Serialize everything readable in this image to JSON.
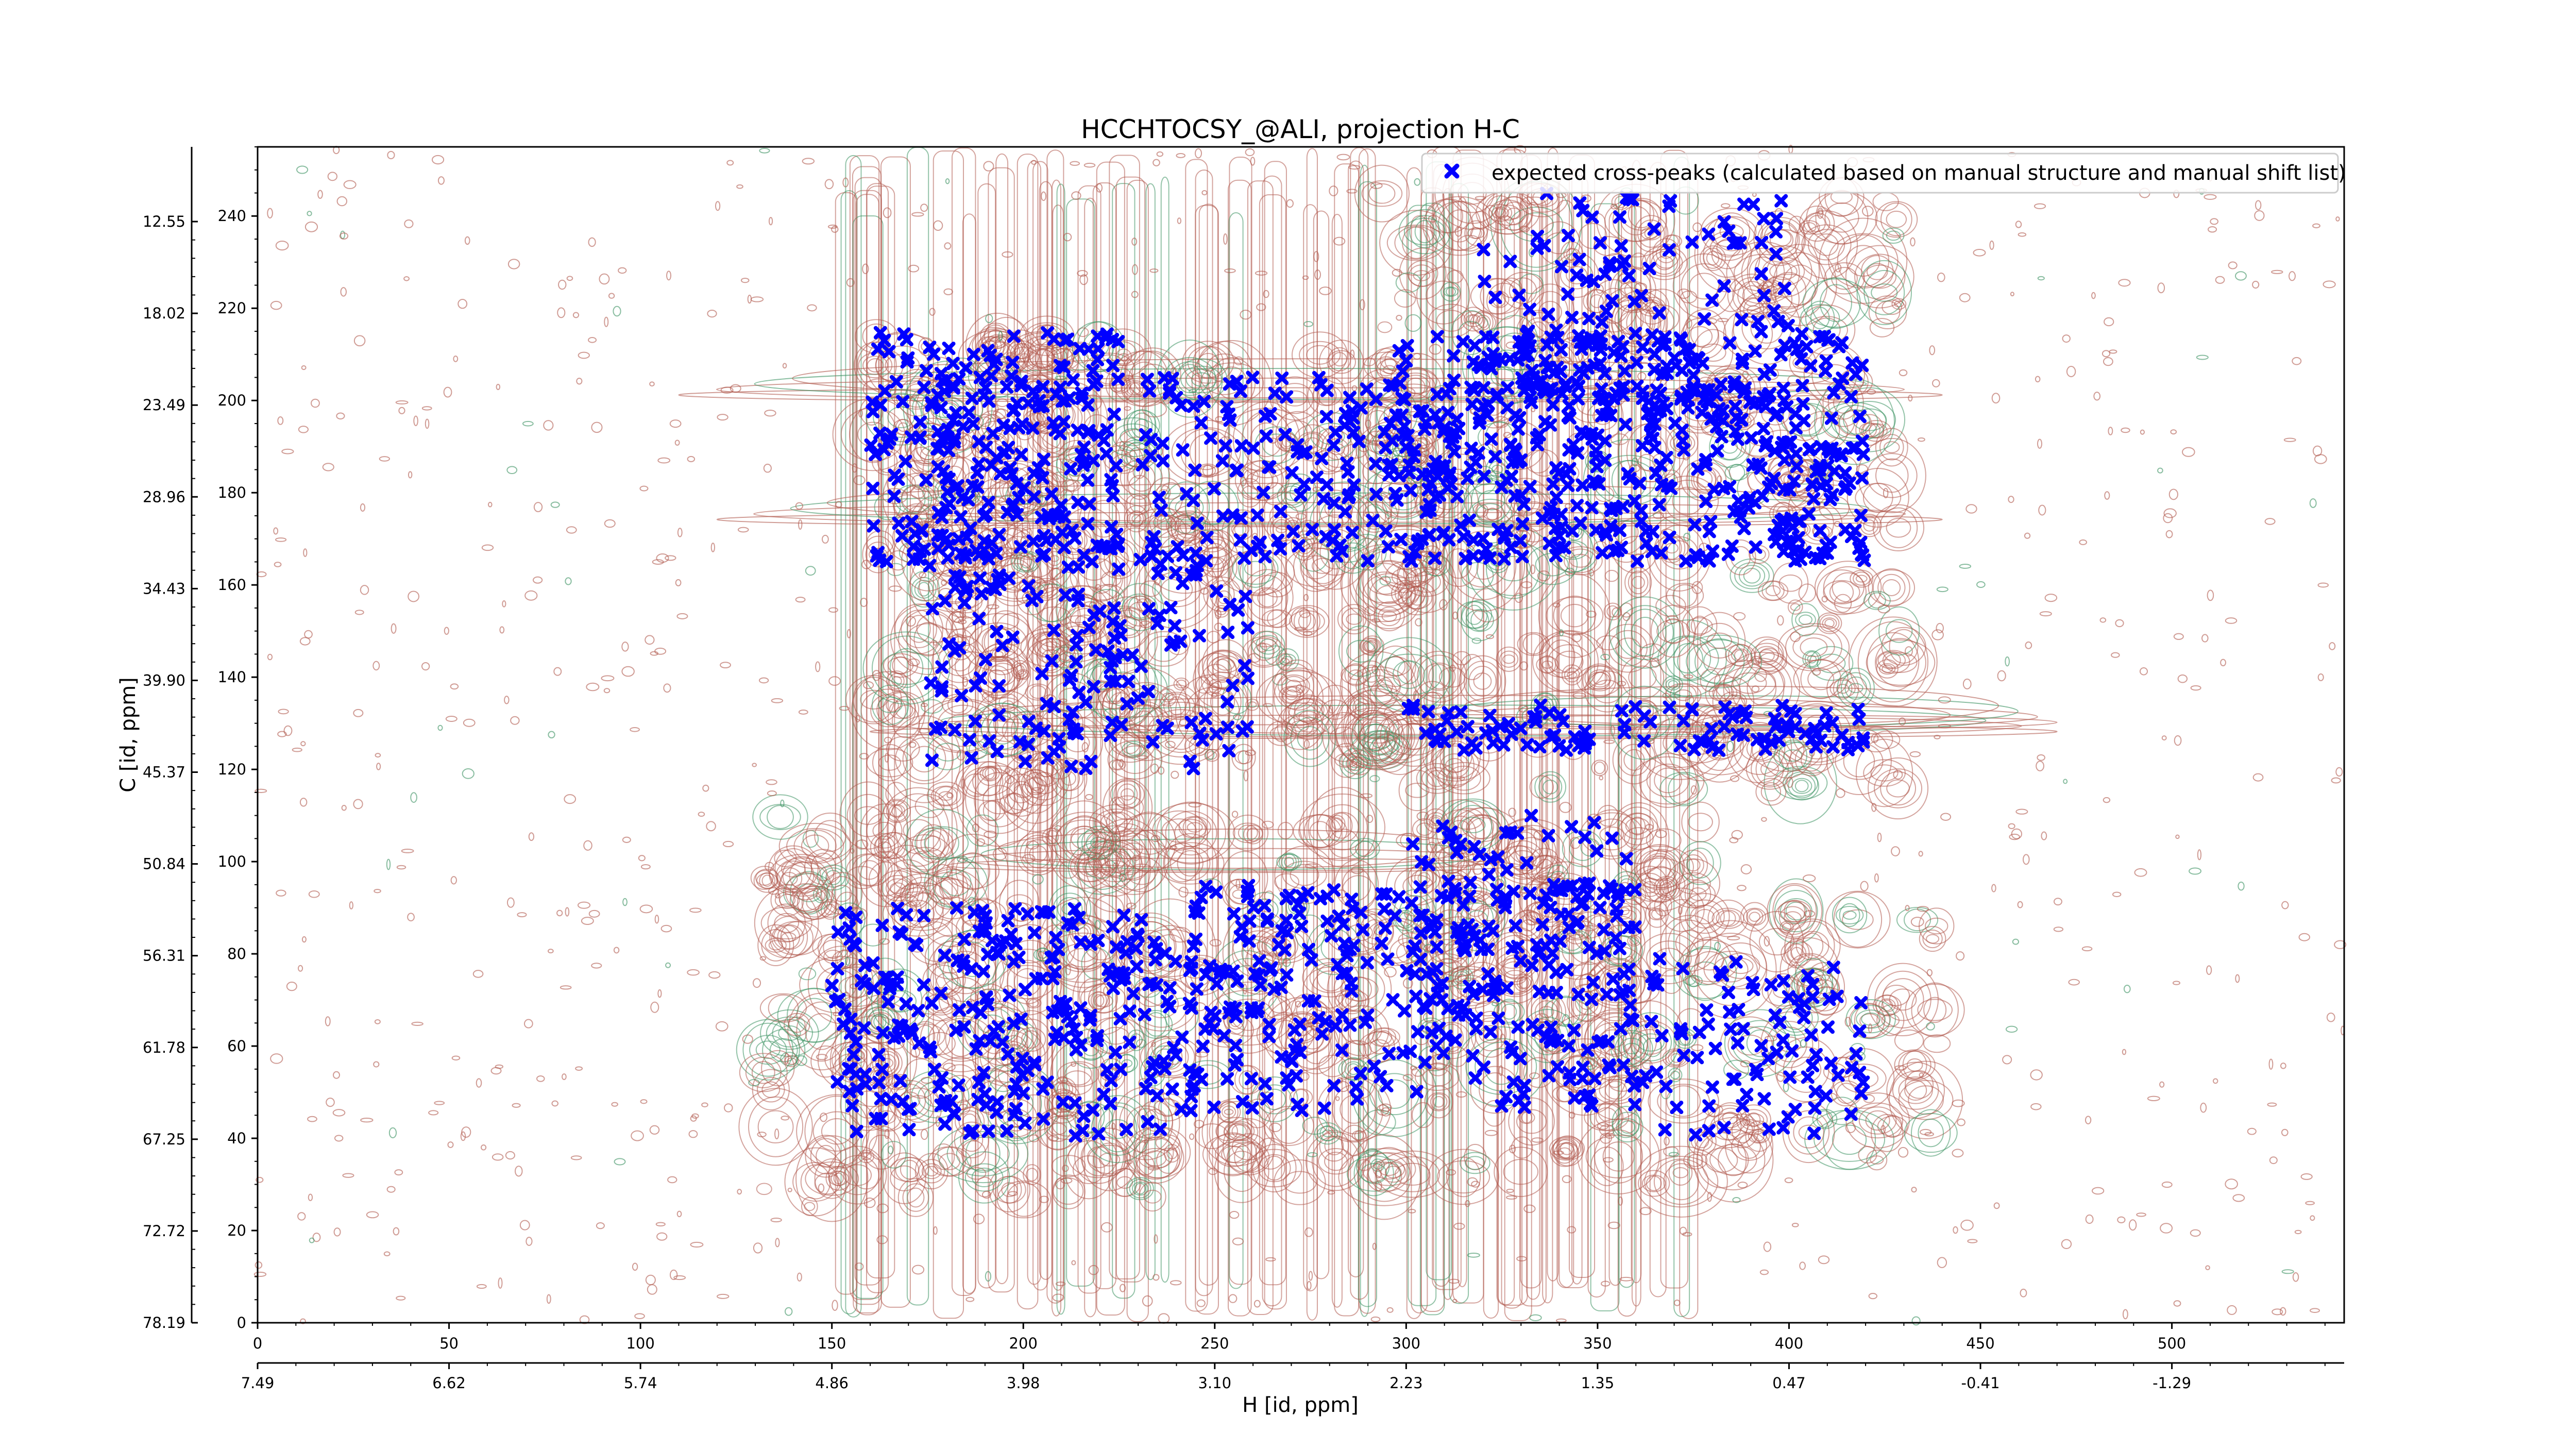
{
  "chart_data": {
    "type": "scatter",
    "title": "HCCHTOCSY_@ALI, projection H-C",
    "xlabel": "H [id, ppm]",
    "ylabel": "C [id, ppm]",
    "grid": false,
    "legend_position": "top-right",
    "xlim": [
      0,
      545
    ],
    "ylim": [
      0,
      255
    ],
    "x_ticks_bottom": [
      "0",
      "50",
      "100",
      "150",
      "200",
      "250",
      "300",
      "350",
      "400",
      "450",
      "500"
    ],
    "x_ticks_ppm": [
      "7.49",
      "6.62",
      "5.74",
      "4.86",
      "3.98",
      "3.10",
      "2.23",
      "1.35",
      "0.47",
      "-0.41",
      "-1.29"
    ],
    "y_ticks_left": [
      "0",
      "20",
      "40",
      "60",
      "80",
      "100",
      "120",
      "140",
      "160",
      "180",
      "200",
      "220",
      "240"
    ],
    "y_ticks_ppm": [
      "78.19",
      "72.72",
      "67.25",
      "61.78",
      "56.31",
      "50.84",
      "45.37",
      "39.90",
      "34.43",
      "28.96",
      "23.49",
      "18.02",
      "12.55"
    ],
    "series": [
      {
        "name": "expected cross-peaks (calculated based on manual structure and manual shift list)",
        "color": "#0000ff",
        "marker": "X",
        "clusters": [
          {
            "x": [
              160,
              225
            ],
            "y": [
              165,
              215
            ],
            "n": 260
          },
          {
            "x": [
              230,
              300
            ],
            "y": [
              165,
              205
            ],
            "n": 130
          },
          {
            "x": [
              295,
              420
            ],
            "y": [
              165,
              215
            ],
            "n": 520
          },
          {
            "x": [
              320,
              400
            ],
            "y": [
              200,
              245
            ],
            "n": 120
          },
          {
            "x": [
              175,
              260
            ],
            "y": [
              120,
              165
            ],
            "n": 150
          },
          {
            "x": [
              300,
              420
            ],
            "y": [
              124,
              134
            ],
            "n": 110
          },
          {
            "x": [
              150,
              240
            ],
            "y": [
              40,
              90
            ],
            "n": 260
          },
          {
            "x": [
              240,
              360
            ],
            "y": [
              45,
              95
            ],
            "n": 330
          },
          {
            "x": [
              360,
              420
            ],
            "y": [
              40,
              80
            ],
            "n": 90
          },
          {
            "x": [
              300,
              360
            ],
            "y": [
              80,
              110
            ],
            "n": 60
          }
        ]
      }
    ],
    "contour_colors": {
      "positive": "#b05a4f",
      "negative": "#3b9160"
    }
  }
}
